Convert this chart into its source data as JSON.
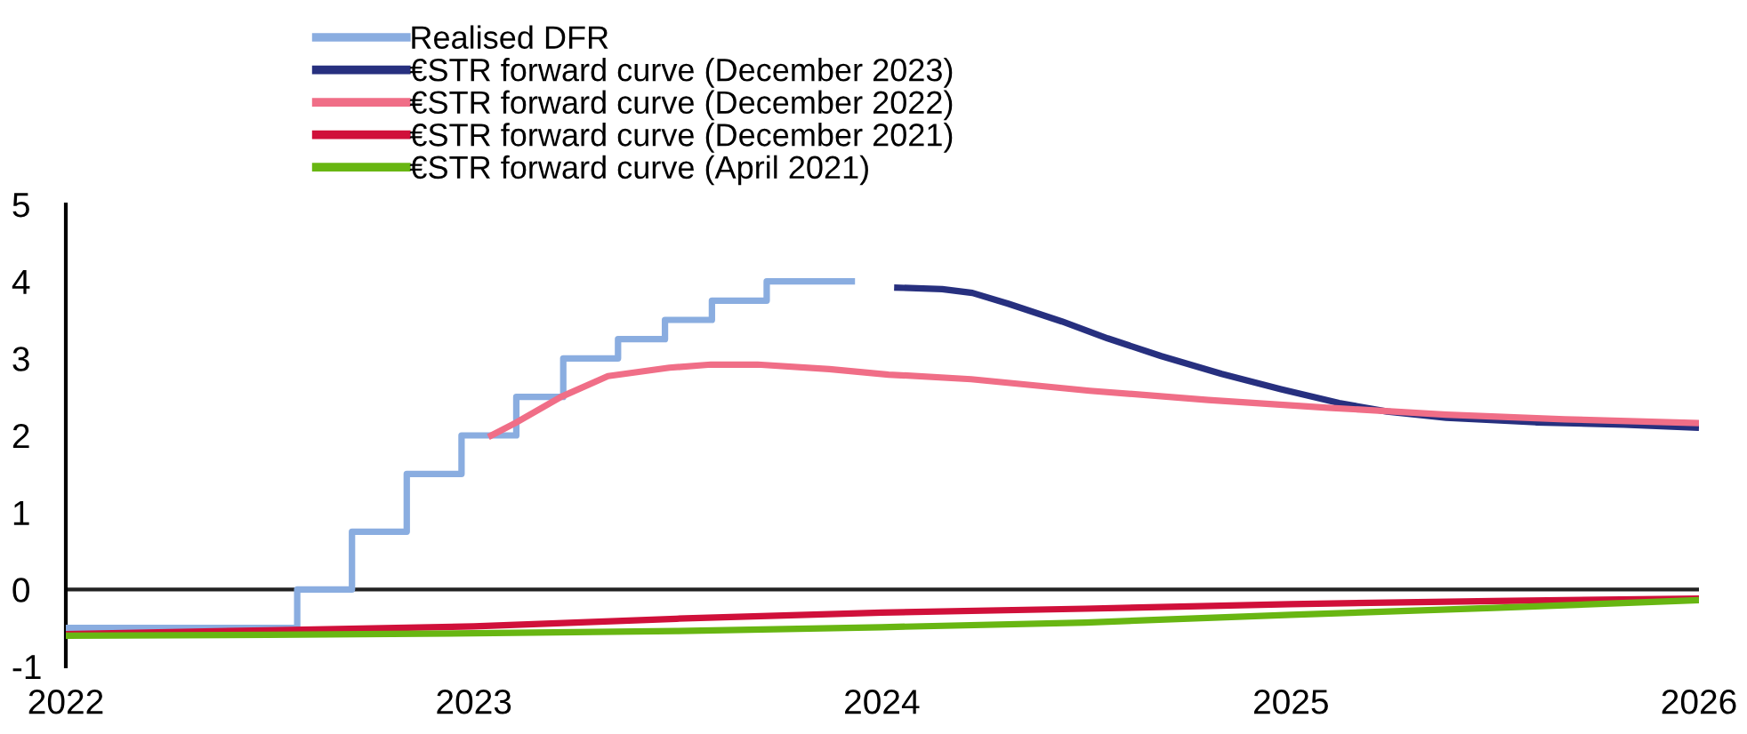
{
  "chart_data": {
    "type": "line",
    "xlim": [
      "2022-01-01",
      "2026-01-01"
    ],
    "xticks": [
      {
        "value": "2022-01-01",
        "label": "2022"
      },
      {
        "value": "2023-01-01",
        "label": "2023"
      },
      {
        "value": "2024-01-01",
        "label": "2024"
      },
      {
        "value": "2025-01-01",
        "label": "2025"
      },
      {
        "value": "2026-01-01",
        "label": "2026"
      }
    ],
    "ylim": [
      -1,
      5
    ],
    "yticks": [
      -1,
      0,
      1,
      2,
      3,
      4,
      5
    ],
    "grid": false,
    "legend": "top left",
    "marker": "none",
    "line_style": "solid",
    "ref_lines": [
      {
        "axis": "y",
        "value": 0,
        "color": "#222222"
      }
    ],
    "series": [
      {
        "name": "Realised DFR",
        "type": "step",
        "color": "#8aade0",
        "x": [
          "2022-01-01",
          "2022-07-27",
          "2022-09-14",
          "2022-11-02",
          "2022-12-21",
          "2023-02-08",
          "2023-03-22",
          "2023-05-10",
          "2023-06-21",
          "2023-08-02",
          "2023-09-20",
          "2023-12-08"
        ],
        "values": [
          -0.5,
          0,
          0.75,
          1.5,
          2,
          2.5,
          3,
          3.25,
          3.5,
          3.75,
          4,
          4
        ]
      },
      {
        "name": "€STR forward curve (December 2023)",
        "color": "#27307f",
        "x": [
          "2024-01-12",
          "2024-02-24",
          "2024-03-22",
          "2024-04-23",
          "2024-06-10",
          "2024-07-21",
          "2024-09-07",
          "2024-10-31",
          "2024-12-23",
          "2025-02-13",
          "2025-03-28",
          "2025-05-20",
          "2025-08-08",
          "2025-10-26",
          "2026-01-01"
        ],
        "values": [
          3.92,
          3.9,
          3.85,
          3.71,
          3.48,
          3.26,
          3.03,
          2.8,
          2.6,
          2.42,
          2.31,
          2.23,
          2.17,
          2.14,
          2.1
        ]
      },
      {
        "name": "€STR forward curve (December 2022)",
        "color": "#f06e87",
        "x": [
          "2023-01-14",
          "2023-02-07",
          "2023-03-20",
          "2023-05-01",
          "2023-06-25",
          "2023-08-01",
          "2023-09-12",
          "2023-11-15",
          "2024-01-07",
          "2024-03-21",
          "2024-07-05",
          "2024-10-19",
          "2025-02-03",
          "2025-05-20",
          "2025-09-03",
          "2026-01-01"
        ],
        "values": [
          1.98,
          2.16,
          2.5,
          2.77,
          2.88,
          2.92,
          2.92,
          2.86,
          2.79,
          2.73,
          2.58,
          2.46,
          2.36,
          2.27,
          2.21,
          2.16
        ]
      },
      {
        "name": "€STR forward curve (December 2021)",
        "color": "#d0103a",
        "x": [
          "2022-01-01",
          "2022-07-01",
          "2023-01-01",
          "2023-07-01",
          "2024-01-01",
          "2024-07-01",
          "2025-01-01",
          "2025-07-01",
          "2026-01-01"
        ],
        "values": [
          -0.58,
          -0.53,
          -0.48,
          -0.38,
          -0.3,
          -0.25,
          -0.19,
          -0.15,
          -0.12
        ]
      },
      {
        "name": "€STR forward curve (April 2021)",
        "color": "#68b612",
        "x": [
          "2022-01-01",
          "2022-07-01",
          "2023-01-01",
          "2023-07-01",
          "2024-01-01",
          "2024-07-01",
          "2025-01-01",
          "2025-07-01",
          "2026-01-01"
        ],
        "values": [
          -0.6,
          -0.59,
          -0.57,
          -0.54,
          -0.49,
          -0.43,
          -0.33,
          -0.24,
          -0.14
        ]
      }
    ]
  }
}
